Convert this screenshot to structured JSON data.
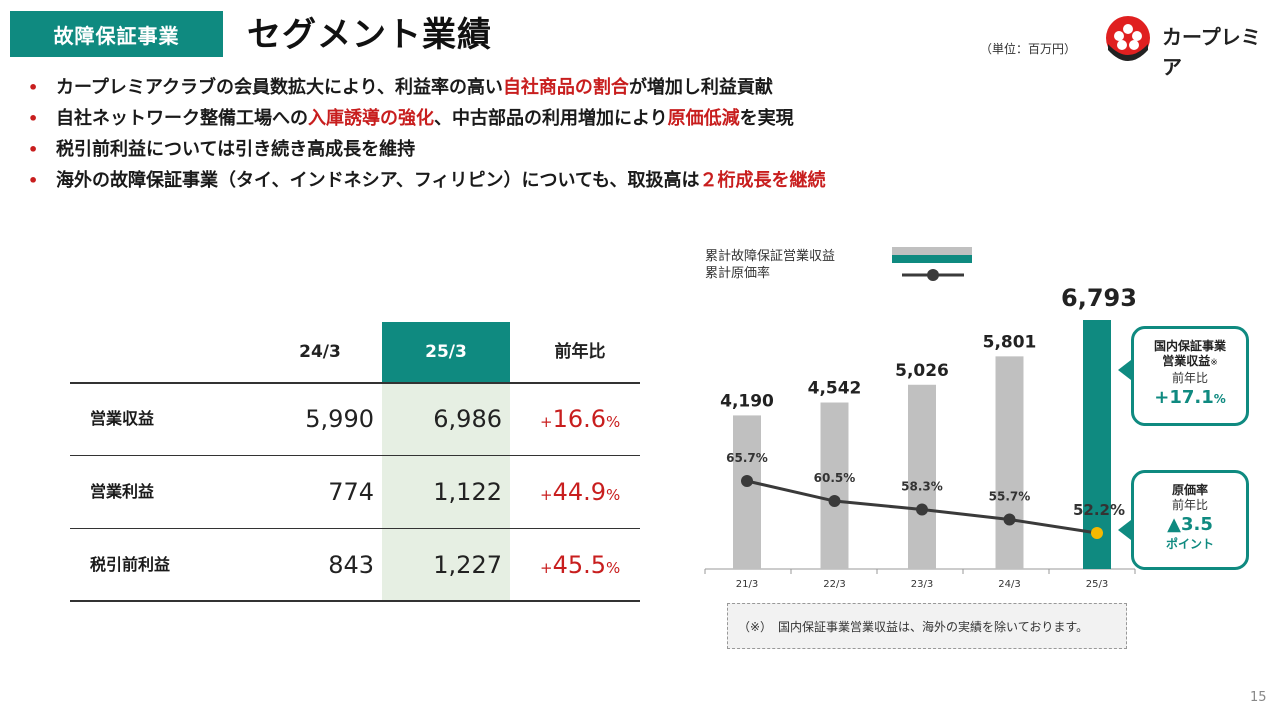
{
  "header": {
    "segment_tag": "故障保証事業",
    "title": "セグメント業績",
    "unit": "（単位：百万円）",
    "logo_text": "カープレミア"
  },
  "bullets": [
    {
      "parts": [
        {
          "t": "カープレミアクラブの会員数拡大により、利益率の高い",
          "hl": false
        },
        {
          "t": "自社商品の割合",
          "hl": true
        },
        {
          "t": "が増加し利益貢献",
          "hl": false
        }
      ]
    },
    {
      "parts": [
        {
          "t": "自社ネットワーク整備工場への",
          "hl": false
        },
        {
          "t": "入庫誘導の強化",
          "hl": true
        },
        {
          "t": "、中古部品の利用増加により",
          "hl": false
        },
        {
          "t": "原価低減",
          "hl": true
        },
        {
          "t": "を実現",
          "hl": false
        }
      ]
    },
    {
      "parts": [
        {
          "t": "税引前利益については引き続き高成長を維持",
          "hl": false
        }
      ]
    },
    {
      "parts": [
        {
          "t": "海外の故障保証事業（タイ、インドネシア、フィリピン）についても、取扱高は",
          "hl": false
        },
        {
          "t": "２桁成長を継続",
          "hl": true
        }
      ]
    }
  ],
  "table": {
    "headers": [
      "24/3",
      "25/3",
      "前年比"
    ],
    "rows": [
      {
        "label": "営業収益",
        "prev": "5,990",
        "curr": "6,986",
        "yoy_sign": "+",
        "yoy_value": "16.6",
        "yoy_unit": "%"
      },
      {
        "label": "営業利益",
        "prev": "774",
        "curr": "1,122",
        "yoy_sign": "+",
        "yoy_value": "44.9",
        "yoy_unit": "%"
      },
      {
        "label": "税引前利益",
        "prev": "843",
        "curr": "1,227",
        "yoy_sign": "+",
        "yoy_value": "45.5",
        "yoy_unit": "%"
      }
    ]
  },
  "chart_data": {
    "type": "bar",
    "categories": [
      "21/3",
      "22/3",
      "23/3",
      "24/3",
      "25/3"
    ],
    "series": [
      {
        "name": "累計故障保証営業収益",
        "type": "bar",
        "values": [
          4190,
          4542,
          5026,
          5801,
          6793
        ],
        "labels": [
          "4,190",
          "4,542",
          "5,026",
          "5,801",
          "6,793"
        ],
        "color": "#c0c0c0",
        "highlight_color": "#0f8a80"
      },
      {
        "name": "累計原価率",
        "type": "line",
        "values": [
          65.7,
          60.5,
          58.3,
          55.7,
          52.2
        ],
        "labels": [
          "65.7%",
          "60.5%",
          "58.3%",
          "55.7%",
          "52.2%"
        ],
        "color": "#3a3a3a",
        "highlight_color": "#f5b800"
      }
    ],
    "legend_placement": "top",
    "grid": false
  },
  "callouts": {
    "revenue": {
      "title1": "国内保証事業",
      "title2": "営業収益",
      "mark": "※",
      "sub": "前年比",
      "value": "+17.1",
      "unit": "%"
    },
    "cost": {
      "title": "原価率",
      "sub": "前年比",
      "value": "▲3.5",
      "unit": "ポイント"
    }
  },
  "footnote": "（※）　国内保証事業営業収益は、海外の実績を除いております。",
  "page_number": "15"
}
